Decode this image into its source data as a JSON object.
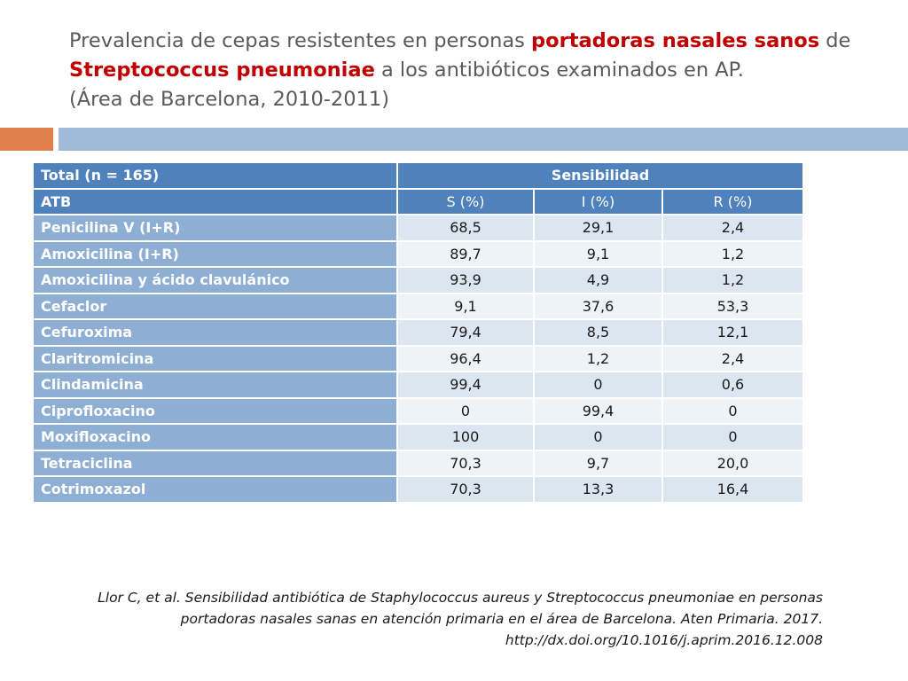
{
  "title": {
    "part1": "Prevalencia de cepas resistentes en personas ",
    "highlight1": "portadoras nasales sanos",
    "part2": " de ",
    "highlight2": "Streptococcus pneumoniae",
    "part3": " a los antibióticos examinados en AP.",
    "line3": "(Área de Barcelona, 2010-2011)"
  },
  "colors": {
    "title_highlight": "#c00000",
    "header_blue": "#4f81bd",
    "accent_orange": "#e0804a",
    "bar_blue": "#9fbbd8"
  },
  "table": {
    "header_total": "Total (n = 165)",
    "header_group": "Sensibilidad",
    "col_atb": "ATB",
    "col_s": "S (%)",
    "col_i": "I (%)",
    "col_r": "R (%)",
    "rows": [
      {
        "atb": "Penicilina V (I+R)",
        "s": "68,5",
        "i": "29,1",
        "r": "2,4"
      },
      {
        "atb": "Amoxicilina (I+R)",
        "s": "89,7",
        "i": "9,1",
        "r": "1,2"
      },
      {
        "atb": "Amoxicilina y ácido clavulánico",
        "s": "93,9",
        "i": "4,9",
        "r": "1,2"
      },
      {
        "atb": "Cefaclor",
        "s": "9,1",
        "i": "37,6",
        "r": "53,3"
      },
      {
        "atb": "Cefuroxima",
        "s": "79,4",
        "i": "8,5",
        "r": "12,1"
      },
      {
        "atb": "Claritromicina",
        "s": "96,4",
        "i": "1,2",
        "r": "2,4"
      },
      {
        "atb": "Clindamicina",
        "s": "99,4",
        "i": "0",
        "r": "0,6"
      },
      {
        "atb": "Ciprofloxacino",
        "s": "0",
        "i": "99,4",
        "r": "0"
      },
      {
        "atb": "Moxifloxacino",
        "s": "100",
        "i": "0",
        "r": "0"
      },
      {
        "atb": "Tetraciclina",
        "s": "70,3",
        "i": "9,7",
        "r": "20,0"
      },
      {
        "atb": "Cotrimoxazol",
        "s": "70,3",
        "i": "13,3",
        "r": "16,4"
      }
    ]
  },
  "reference": {
    "line1": "Llor C, et al. Sensibilidad antibiótica de Staphylococcus aureus y Streptococcus pneumoniae en personas",
    "line2": "portadoras nasales sanas en atención primaria en el área de Barcelona. Aten Primaria. 2017.",
    "line3": "http://dx.doi.org/10.1016/j.aprim.2016.12.008"
  }
}
